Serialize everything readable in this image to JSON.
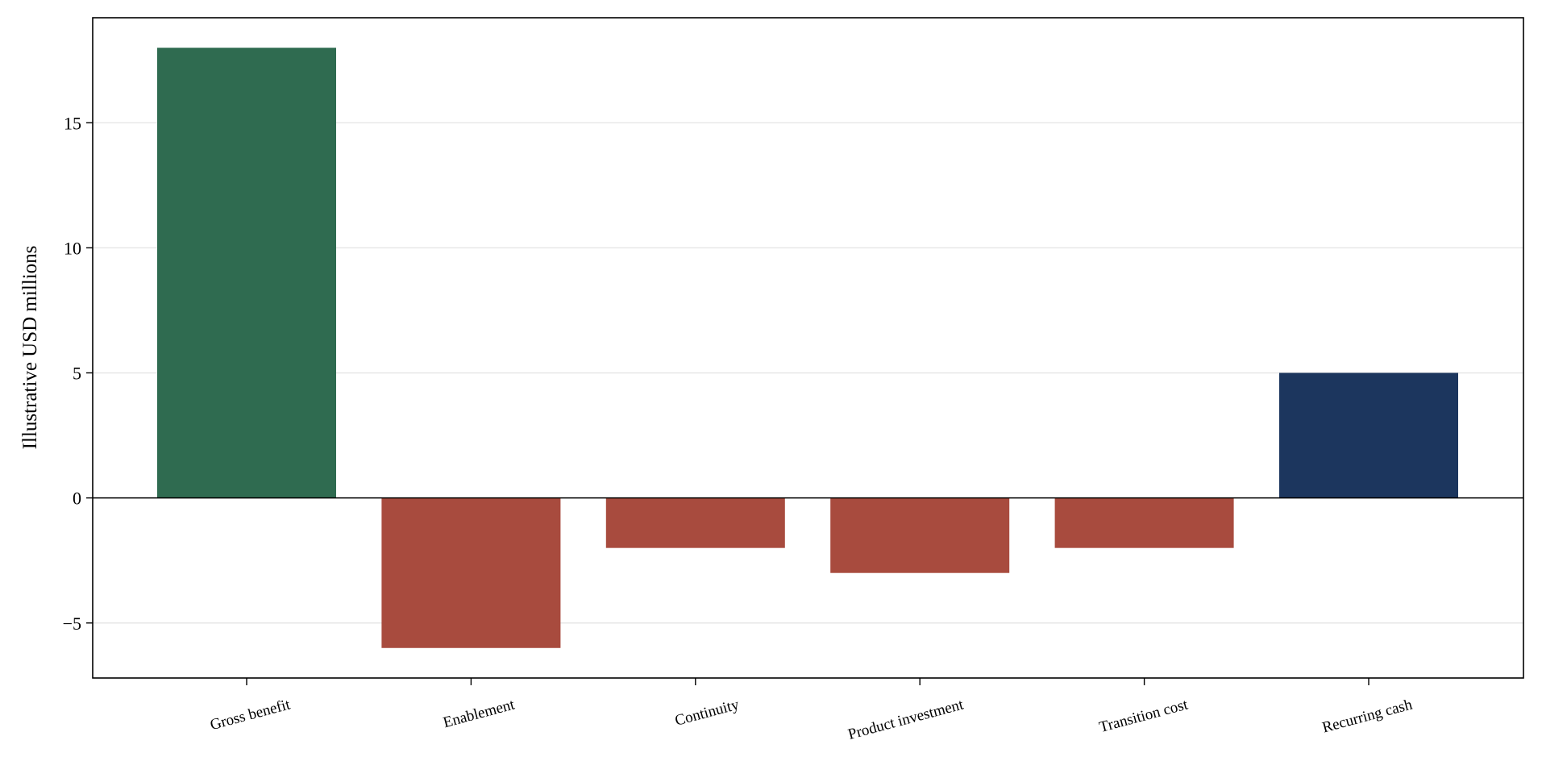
{
  "chart_data": {
    "type": "bar",
    "categories": [
      "Gross benefit",
      "Enablement",
      "Continuity",
      "Product investment",
      "Transition cost",
      "Recurring cash"
    ],
    "values": [
      18,
      -6,
      -2,
      -3,
      -2,
      5
    ],
    "bar_colors": [
      "#2f6b50",
      "#a84b3e",
      "#a84b3e",
      "#a84b3e",
      "#a84b3e",
      "#1c365e"
    ],
    "ylabel": "Illustrative USD millions",
    "ylim": [
      -7.2,
      19.2
    ],
    "yticks": [
      {
        "value": -5,
        "label": "−5"
      },
      {
        "value": 0,
        "label": "0"
      },
      {
        "value": 5,
        "label": "5"
      },
      {
        "value": 10,
        "label": "10"
      },
      {
        "value": 15,
        "label": "15"
      }
    ],
    "grid": "horizontal",
    "zero_line": true
  }
}
